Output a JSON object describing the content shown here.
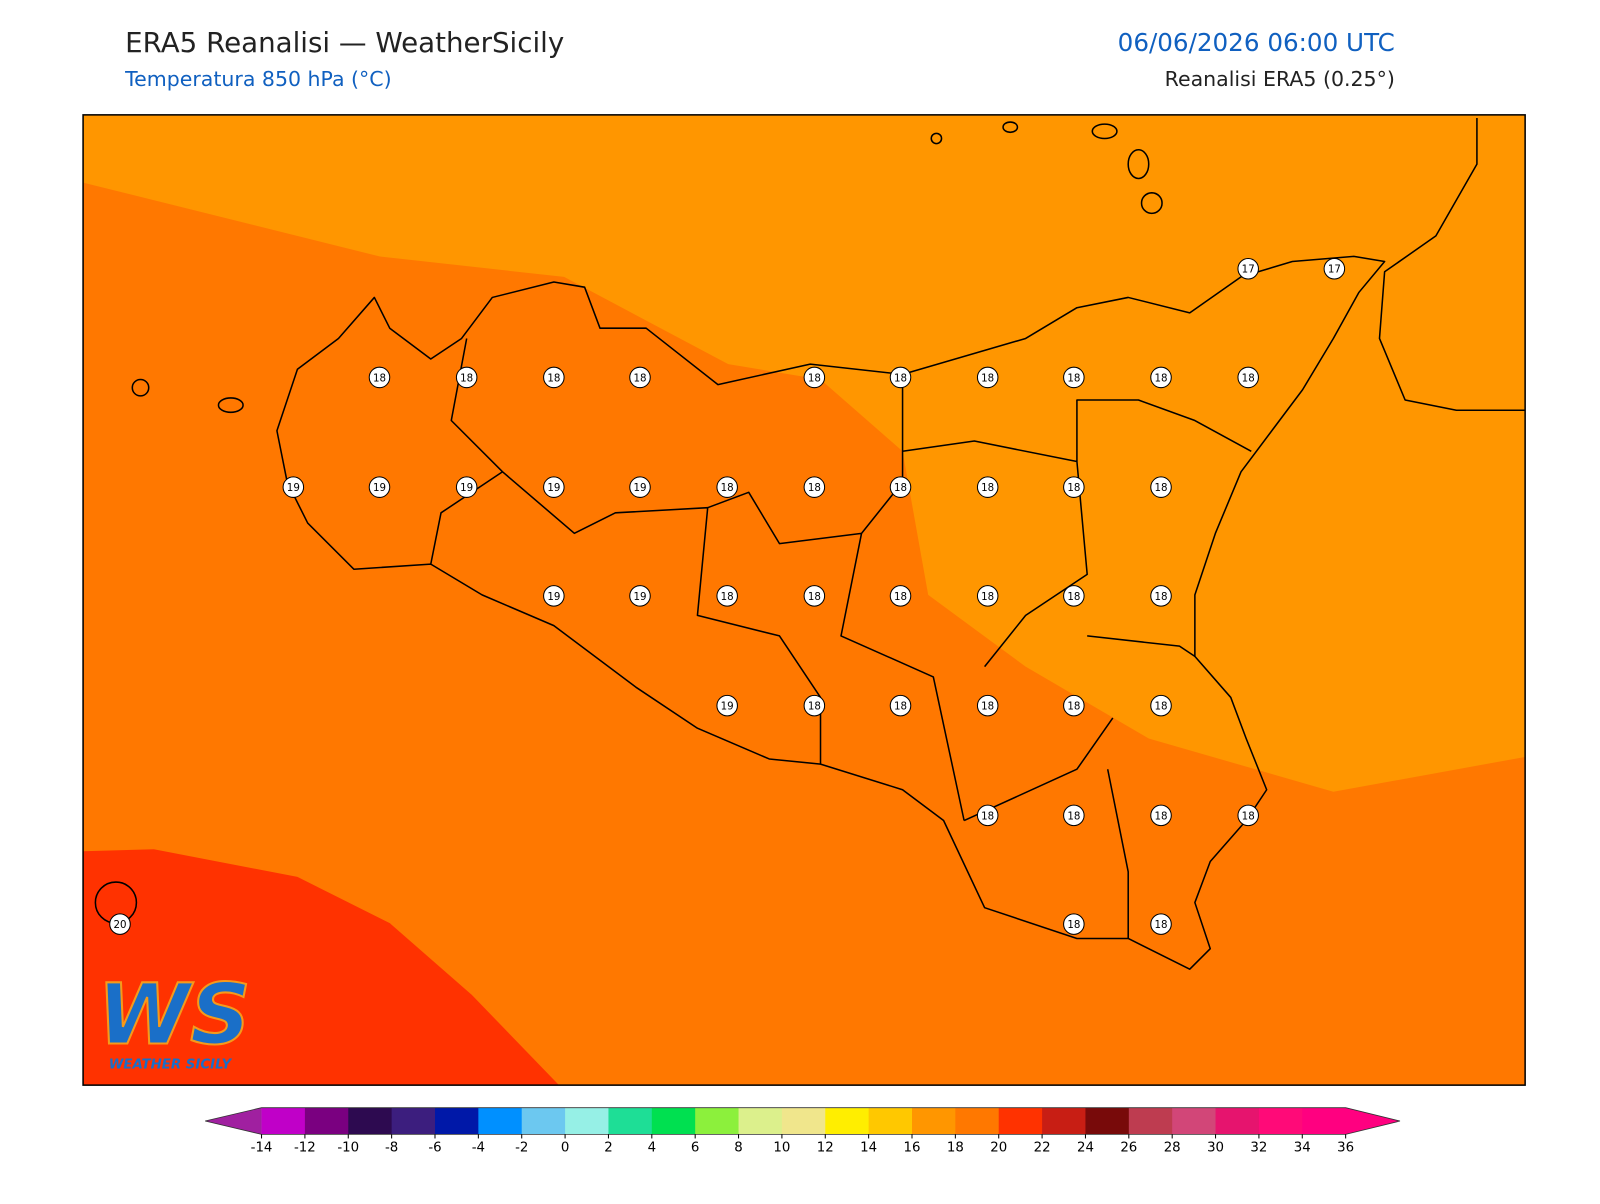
{
  "header": {
    "title": "ERA5 Reanalisi — WeatherSicily",
    "subtitle": "Temperatura 850 hPa (°C)",
    "datetime": "06/06/2026 06:00 UTC",
    "source": "Reanalisi ERA5 (0.25°)"
  },
  "map": {
    "points": [
      18,
      18,
      18,
      18,
      18,
      18,
      18,
      18,
      18,
      18,
      19,
      19,
      19,
      19,
      19,
      18,
      18,
      18,
      18,
      18,
      18,
      19,
      19,
      18,
      18,
      18,
      18,
      18,
      18,
      19,
      18,
      18,
      18,
      18,
      18,
      18,
      18,
      18,
      18,
      18,
      18,
      17,
      17,
      20
    ],
    "field_colors": [
      "#ff9600",
      "#ff7800",
      "#ff3200"
    ]
  },
  "colorbar": {
    "ticks": [
      -14,
      -12,
      -10,
      -8,
      -6,
      -4,
      -2,
      0,
      2,
      4,
      6,
      8,
      10,
      12,
      14,
      16,
      18,
      20,
      22,
      24,
      26,
      28,
      30,
      32,
      34,
      36
    ],
    "colors": [
      "#c000c8",
      "#7a0080",
      "#2d0a50",
      "#3c1e7e",
      "#0018a8",
      "#0090ff",
      "#6cc8f0",
      "#96f0e6",
      "#1ede96",
      "#00e050",
      "#8cf03c",
      "#dcf08c",
      "#f0e68c",
      "#ffee00",
      "#ffc800",
      "#ff9600",
      "#ff7800",
      "#ff3200",
      "#c81e14",
      "#780a0a",
      "#be3c50",
      "#d24678",
      "#e6146e",
      "#ff0a78",
      "#ff0080"
    ],
    "under": "#a020a0",
    "over": "#ff0080"
  },
  "logo": {
    "mark": "WS",
    "text": "WEATHER SICILY"
  }
}
